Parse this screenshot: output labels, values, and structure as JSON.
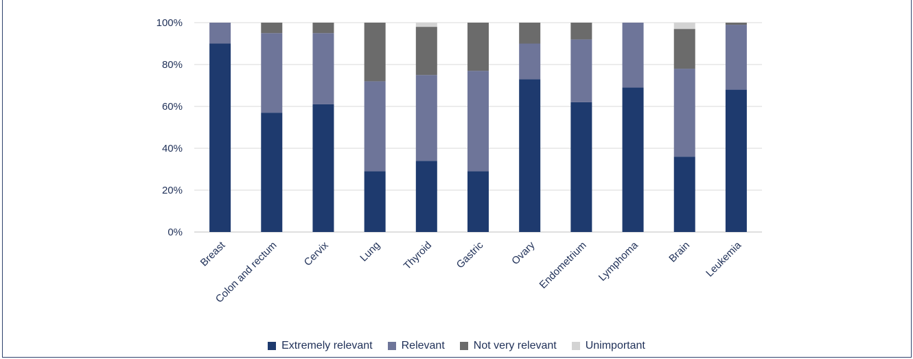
{
  "chart_data": {
    "type": "bar",
    "stacked": true,
    "title": "",
    "xlabel": "",
    "ylabel": "",
    "ylim": [
      0,
      100
    ],
    "yticks": [
      "0%",
      "20%",
      "40%",
      "60%",
      "80%",
      "100%"
    ],
    "grid": true,
    "legend_position": "bottom",
    "categories": [
      "Breast",
      "Colon and rectum",
      "Cervix",
      "Lung",
      "Thyroid",
      "Gastric",
      "Ovary",
      "Endometrium",
      "Lymphoma",
      "Brain",
      "Leukemia"
    ],
    "series": [
      {
        "name": "Extremely relevant",
        "color": "#1e3a6e",
        "values": [
          90,
          57,
          61,
          29,
          34,
          29,
          73,
          62,
          69,
          36,
          68
        ]
      },
      {
        "name": "Relevant",
        "color": "#6e7599",
        "values": [
          10,
          38,
          34,
          43,
          41,
          48,
          17,
          30,
          31,
          42,
          31
        ]
      },
      {
        "name": "Not very relevant",
        "color": "#6b6b6b",
        "values": [
          0,
          5,
          5,
          28,
          23,
          23,
          10,
          8,
          0,
          19,
          1
        ]
      },
      {
        "name": "Unimportant",
        "color": "#d3d3d3",
        "values": [
          0,
          0,
          0,
          0,
          2,
          0,
          0,
          0,
          0,
          3,
          0
        ]
      }
    ]
  }
}
